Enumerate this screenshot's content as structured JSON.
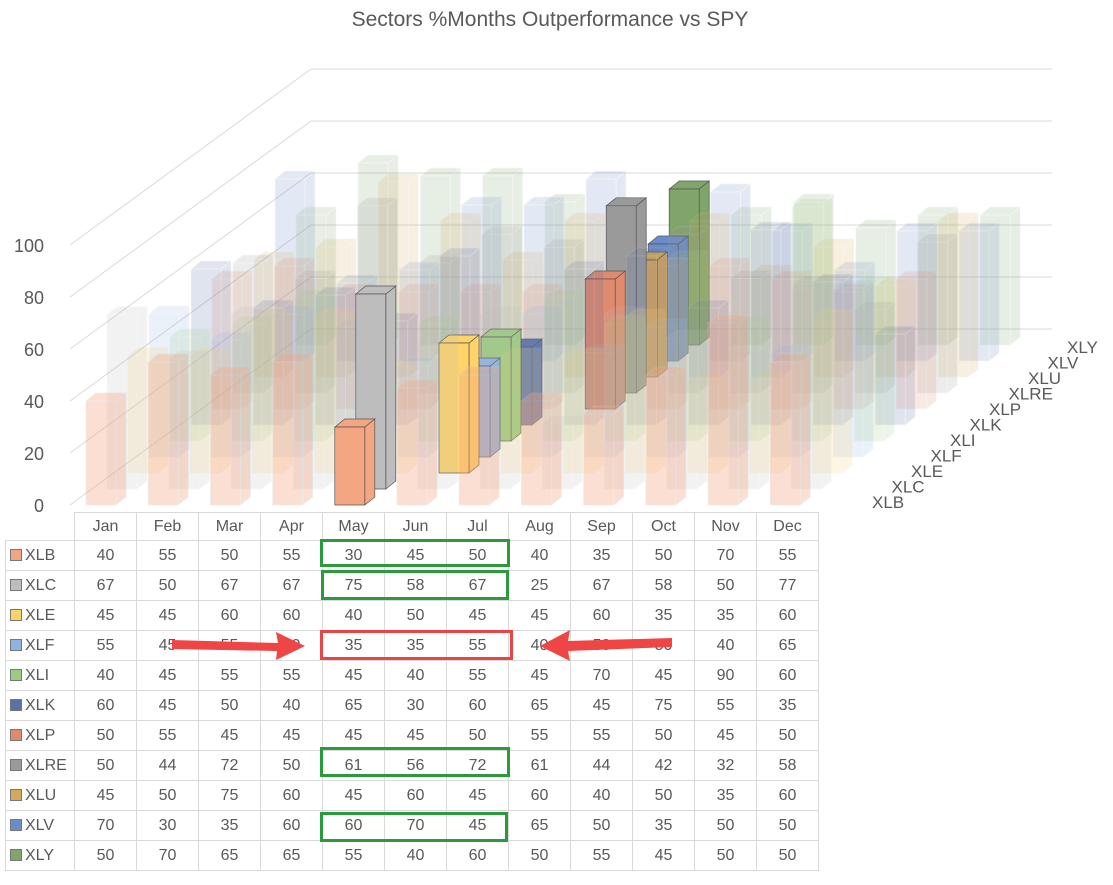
{
  "chart_data": {
    "type": "bar",
    "variant": "3d-column",
    "title": "Sectors %Months Outperformance vs SPY",
    "categories": [
      "Jan",
      "Feb",
      "Mar",
      "Apr",
      "May",
      "Jun",
      "Jul",
      "Aug",
      "Sep",
      "Oct",
      "Nov",
      "Dec"
    ],
    "ylim": [
      0,
      100
    ],
    "yticks": [
      "0",
      "20",
      "40",
      "60",
      "80",
      "100"
    ],
    "grid": true,
    "series": [
      {
        "name": "XLB",
        "color": "#f4a582",
        "values": [
          40,
          55,
          50,
          55,
          30,
          45,
          50,
          40,
          35,
          50,
          70,
          55
        ],
        "highlight": 4
      },
      {
        "name": "XLC",
        "color": "#bdbdbd",
        "values": [
          67,
          50,
          67,
          67,
          75,
          58,
          67,
          25,
          67,
          58,
          50,
          77
        ],
        "highlight": 4
      },
      {
        "name": "XLE",
        "color": "#fdd36a",
        "values": [
          45,
          45,
          60,
          60,
          40,
          50,
          45,
          45,
          60,
          35,
          35,
          60
        ],
        "highlight": 5
      },
      {
        "name": "XLF",
        "color": "#8fb4e3",
        "values": [
          55,
          45,
          55,
          50,
          35,
          35,
          55,
          40,
          50,
          50,
          40,
          65
        ],
        "highlight": 5
      },
      {
        "name": "XLI",
        "color": "#9ccc7e",
        "values": [
          40,
          45,
          55,
          55,
          45,
          40,
          55,
          45,
          70,
          45,
          90,
          60
        ],
        "highlight": 5
      },
      {
        "name": "XLK",
        "color": "#5b6fa8",
        "values": [
          60,
          45,
          50,
          40,
          65,
          30,
          60,
          65,
          45,
          75,
          55,
          35
        ],
        "highlight": 5
      },
      {
        "name": "XLP",
        "color": "#e08a6e",
        "values": [
          50,
          55,
          45,
          45,
          45,
          45,
          50,
          55,
          55,
          50,
          45,
          50
        ],
        "highlight": 6
      },
      {
        "name": "XLRE",
        "color": "#9a9a9a",
        "values": [
          50,
          44,
          72,
          50,
          61,
          56,
          72,
          61,
          44,
          42,
          32,
          58
        ],
        "highlight": 6
      },
      {
        "name": "XLU",
        "color": "#d4aa5a",
        "values": [
          45,
          50,
          75,
          60,
          45,
          60,
          45,
          60,
          40,
          50,
          35,
          60
        ],
        "highlight": 6
      },
      {
        "name": "XLV",
        "color": "#6a8cc8",
        "values": [
          70,
          30,
          35,
          60,
          60,
          70,
          45,
          65,
          50,
          35,
          50,
          50
        ],
        "highlight": 6
      },
      {
        "name": "XLY",
        "color": "#7fa56a",
        "values": [
          50,
          70,
          65,
          65,
          55,
          40,
          60,
          50,
          55,
          45,
          50,
          50
        ],
        "highlight": 6
      }
    ],
    "annotations": {
      "green_boxes": [
        "XLB May-Jul",
        "XLC May-Jul",
        "XLRE May-Jul",
        "XLV May-Jul"
      ],
      "red_box": "XLF May-Jul",
      "arrows": "pointing at XLF May-Jul"
    }
  }
}
